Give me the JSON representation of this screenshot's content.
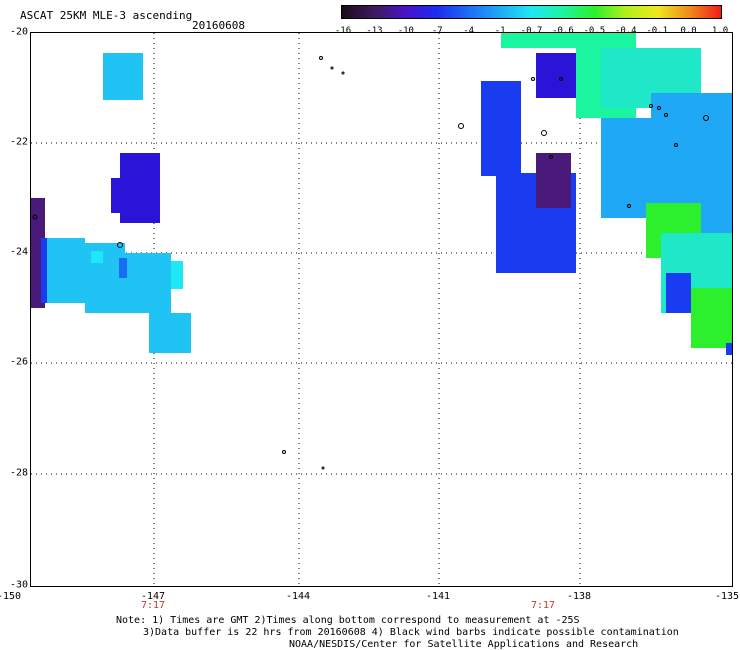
{
  "header": {
    "title": "ASCAT 25KM MLE-3 ascending",
    "date": "20160608"
  },
  "colorbar": {
    "labels": [
      "-16",
      "-13",
      "-10",
      "-7",
      "-4",
      "-1",
      "-0.7",
      "-0.6",
      "-0.5",
      "-0.4",
      "-0.1",
      "0.0",
      "1.0"
    ],
    "colors": [
      "#1c0a1c",
      "#3d1a5c",
      "#4a12c8",
      "#1a2cf0",
      "#1f6cf5",
      "#1fa8f5",
      "#1fe8f5",
      "#1cf5a0",
      "#2cf02c",
      "#b0f01c",
      "#f0e81c",
      "#f08a1c",
      "#f01c1c"
    ]
  },
  "map": {
    "lat_labels": [
      "-20",
      "-22",
      "-24",
      "-26",
      "-28",
      "-30"
    ],
    "lon_labels": [
      "-150",
      "-147",
      "-144",
      "-141",
      "-138",
      "-135"
    ],
    "times": [
      "7:17",
      "7:17"
    ]
  },
  "footer": {
    "line1": "Note: 1) Times are GMT 2)Times along bottom correspond to measurement at -25S",
    "line2": "3)Data buffer is 22 hrs from 20160608 4) Black wind barbs indicate possible contamination",
    "line3": "NOAA/NESDIS/Center for Satellite Applications and Research"
  }
}
